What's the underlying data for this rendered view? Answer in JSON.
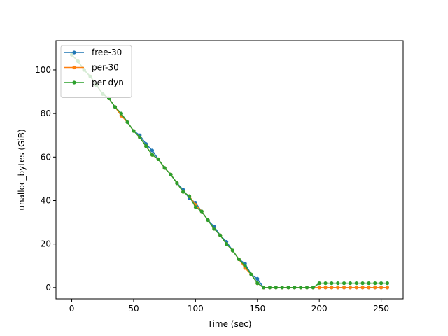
{
  "chart_data": {
    "type": "line",
    "title": "",
    "xlabel": "Time (sec)",
    "ylabel": "unalloc_bytes (GiB)",
    "xlim": [
      -12.75,
      267.75
    ],
    "ylim": [
      -5.2,
      113.5
    ],
    "xticks": [
      0,
      50,
      100,
      150,
      200,
      250
    ],
    "yticks": [
      0,
      20,
      40,
      60,
      80,
      100
    ],
    "grid": false,
    "legend_position": "upper left",
    "x": [
      0,
      5,
      10,
      15,
      20,
      25,
      30,
      35,
      40,
      45,
      50,
      55,
      60,
      65,
      70,
      75,
      80,
      85,
      90,
      95,
      100,
      105,
      110,
      115,
      120,
      125,
      130,
      135,
      140,
      145,
      150,
      155,
      160,
      165,
      170,
      175,
      180,
      185,
      190,
      195,
      200,
      205,
      210,
      215,
      220,
      225,
      230,
      235,
      240,
      245,
      250,
      255
    ],
    "series": [
      {
        "name": "free-30",
        "color": "#1f77b4",
        "values": [
          107,
          104,
          100,
          97,
          93,
          89,
          87,
          83,
          80,
          76,
          72,
          70,
          66,
          63,
          59,
          55,
          52,
          48,
          45,
          41,
          39,
          35,
          31,
          28,
          24,
          21,
          17,
          13,
          11,
          6,
          4,
          0,
          0,
          0,
          0,
          0,
          0,
          0,
          0,
          0,
          0,
          0,
          0,
          0,
          0,
          0,
          0,
          0,
          0,
          0,
          0,
          0
        ]
      },
      {
        "name": "per-30",
        "color": "#ff7f0e",
        "values": [
          107,
          104,
          100,
          97,
          93,
          89,
          87,
          83,
          79,
          76,
          72,
          69,
          65,
          61,
          59,
          55,
          52,
          48,
          44,
          42,
          38,
          35,
          31,
          27,
          24,
          20,
          17,
          13,
          9,
          6,
          2,
          0,
          0,
          0,
          0,
          0,
          0,
          0,
          0,
          0,
          0,
          0,
          0,
          0,
          0,
          0,
          0,
          0,
          0,
          0,
          0,
          0
        ]
      },
      {
        "name": "per-dyn",
        "color": "#2ca02c",
        "values": [
          107,
          104,
          100,
          97,
          93,
          89,
          87,
          83,
          80,
          76,
          72,
          69,
          65,
          61,
          59,
          55,
          52,
          48,
          44,
          42,
          37,
          35,
          31,
          27,
          24,
          20,
          17,
          13,
          10,
          6,
          2,
          0,
          0,
          0,
          0,
          0,
          0,
          0,
          0,
          0,
          2,
          2,
          2,
          2,
          2,
          2,
          2,
          2,
          2,
          2,
          2,
          2
        ]
      }
    ]
  }
}
